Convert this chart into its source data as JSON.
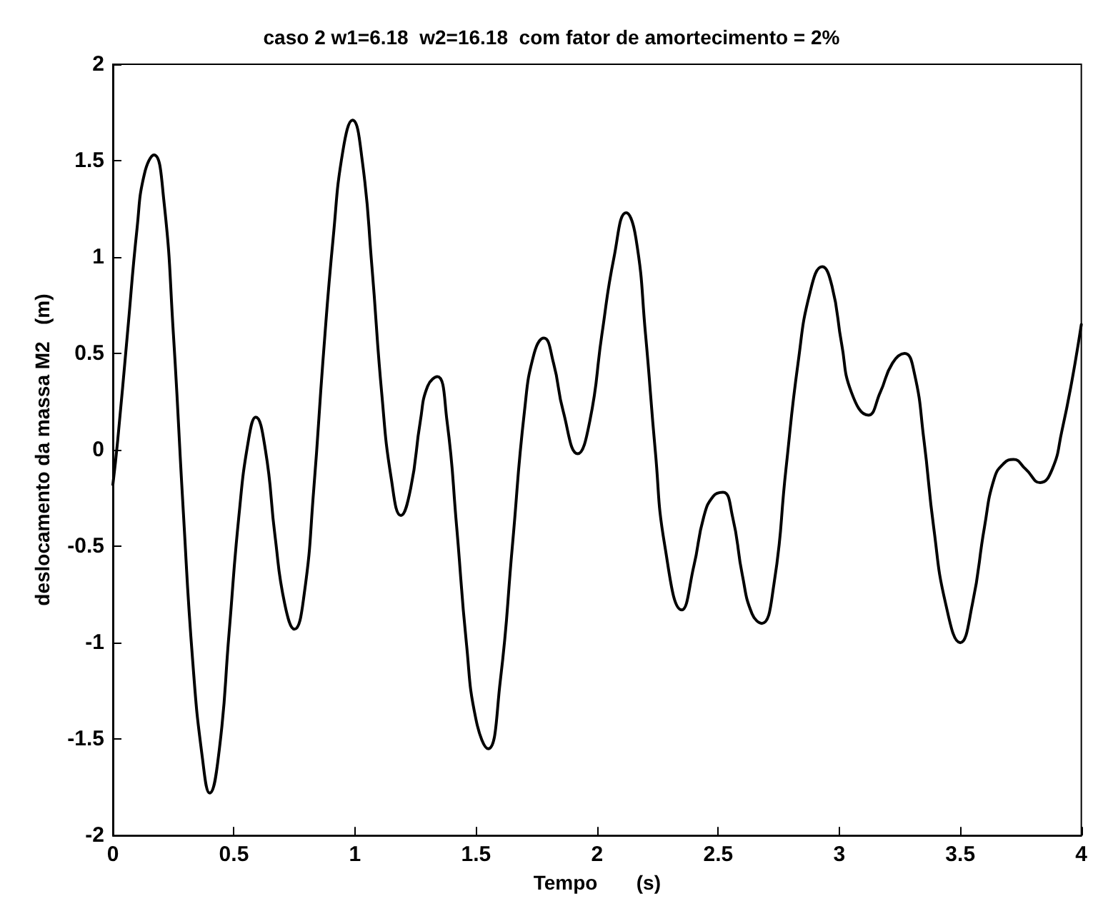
{
  "chart_data": {
    "type": "line",
    "title": "caso 2 w1=6.18  w2=16.18  com fator de amortecimento = 2%",
    "xlabel": "Tempo       (s)",
    "ylabel": "deslocamento da massa M2   (m)",
    "xlim": [
      0,
      4
    ],
    "ylim": [
      -2,
      2
    ],
    "xticks": [
      0,
      0.5,
      1,
      1.5,
      2,
      2.5,
      3,
      3.5,
      4
    ],
    "yticks": [
      -2,
      -1.5,
      -1,
      -0.5,
      0,
      0.5,
      1,
      1.5,
      2
    ],
    "grid": false,
    "marker": "none",
    "line_style": "solid",
    "series": [
      {
        "color": "#000000",
        "x": [
          0,
          0.02,
          0.06,
          0.1,
          0.13,
          0.17,
          0.21,
          0.25,
          0.29,
          0.33,
          0.37,
          0.4,
          0.44,
          0.48,
          0.52,
          0.56,
          0.59,
          0.63,
          0.67,
          0.71,
          0.75,
          0.79,
          0.83,
          0.87,
          0.91,
          0.95,
          0.99,
          1.03,
          1.07,
          1.11,
          1.15,
          1.19,
          1.23,
          1.27,
          1.3,
          1.34,
          1.38,
          1.42,
          1.46,
          1.5,
          1.55,
          1.6,
          1.65,
          1.7,
          1.74,
          1.78,
          1.82,
          1.86,
          1.92,
          1.97,
          2.02,
          2.07,
          2.12,
          2.16,
          2.2,
          2.24,
          2.28,
          2.35,
          2.4,
          2.44,
          2.48,
          2.52,
          2.56,
          2.6,
          2.64,
          2.68,
          2.73,
          2.78,
          2.83,
          2.88,
          2.93,
          2.97,
          3.01,
          3.05,
          3.12,
          3.17,
          3.22,
          3.27,
          3.31,
          3.35,
          3.39,
          3.44,
          3.5,
          3.55,
          3.6,
          3.64,
          3.68,
          3.72,
          3.77,
          3.83,
          3.88,
          3.92,
          3.96,
          4
        ],
        "values": [
          -0.18,
          0.05,
          0.6,
          1.15,
          1.43,
          1.53,
          1.3,
          0.6,
          -0.3,
          -1.1,
          -1.6,
          -1.78,
          -1.55,
          -0.95,
          -0.35,
          0.05,
          0.17,
          0.0,
          -0.45,
          -0.8,
          -0.93,
          -0.75,
          -0.2,
          0.5,
          1.1,
          1.55,
          1.71,
          1.5,
          0.95,
          0.3,
          -0.15,
          -0.34,
          -0.2,
          0.15,
          0.33,
          0.38,
          0.15,
          -0.4,
          -1.0,
          -1.4,
          -1.55,
          -1.2,
          -0.5,
          0.2,
          0.5,
          0.58,
          0.45,
          0.2,
          -0.02,
          0.15,
          0.6,
          1.0,
          1.23,
          1.1,
          0.6,
          0.0,
          -0.5,
          -0.83,
          -0.6,
          -0.35,
          -0.24,
          -0.22,
          -0.35,
          -0.65,
          -0.85,
          -0.9,
          -0.7,
          -0.1,
          0.45,
          0.82,
          0.95,
          0.85,
          0.55,
          0.3,
          0.18,
          0.3,
          0.45,
          0.5,
          0.4,
          0.05,
          -0.4,
          -0.8,
          -1.0,
          -0.8,
          -0.4,
          -0.15,
          -0.07,
          -0.05,
          -0.1,
          -0.17,
          -0.1,
          0.1,
          0.35,
          0.65
        ]
      }
    ]
  }
}
